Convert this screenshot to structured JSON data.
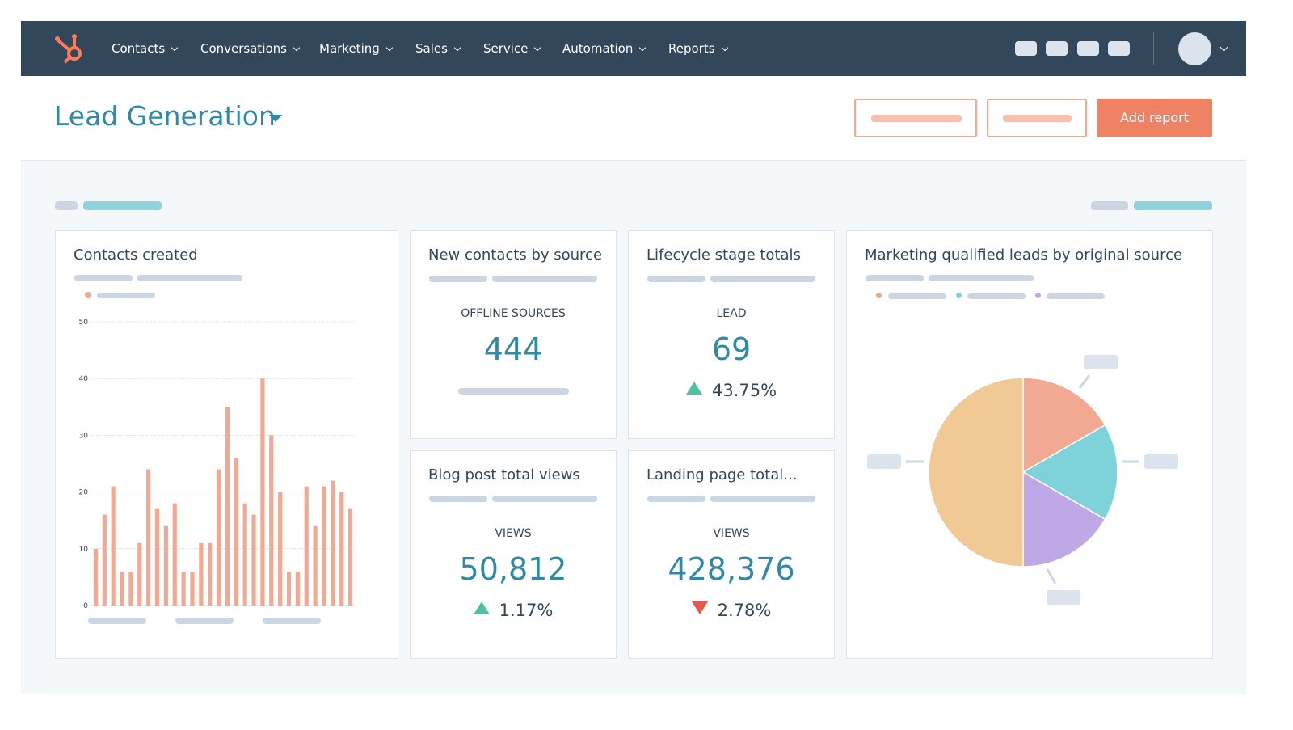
{
  "nav": {
    "items": [
      "Contacts",
      "Conversations",
      "Marketing",
      "Sales",
      "Service",
      "Automation",
      "Reports"
    ]
  },
  "header": {
    "title": "Lead Generation",
    "button": "Add report"
  },
  "chart_data": [
    {
      "type": "bar",
      "title": "Contacts created",
      "color": "#f2a993",
      "values": [
        10,
        16,
        21,
        6,
        6,
        11,
        24,
        17,
        14,
        18,
        6,
        6,
        11,
        11,
        24,
        35,
        26,
        18,
        16,
        40,
        30,
        20,
        6,
        6,
        21,
        14,
        21,
        22,
        20,
        17
      ],
      "ylim": [
        0,
        50
      ],
      "yticks": [
        0,
        10,
        20,
        30,
        40,
        50
      ],
      "grid": true
    },
    {
      "type": "pie",
      "title": "Marketing qualified leads by original source",
      "values": [
        16.7,
        16.6,
        16.7,
        50
      ],
      "colors": [
        "#f2a993",
        "#7dd3d9",
        "#bfa8e6",
        "#f0c995"
      ]
    }
  ],
  "kpis": [
    {
      "title": "New contacts by source",
      "label": "OFFLINE SOURCES",
      "value": "444"
    },
    {
      "title": "Lifecycle stage totals",
      "label": "LEAD",
      "value": "69",
      "change": "43.75%",
      "trend": "up"
    },
    {
      "title": "Blog post total views",
      "label": "VIEWS",
      "value": "50,812",
      "change": "1.17%",
      "trend": "up"
    },
    {
      "title": "Landing page total...",
      "label": "VIEWS",
      "value": "428,376",
      "change": "2.78%",
      "trend": "down"
    }
  ]
}
